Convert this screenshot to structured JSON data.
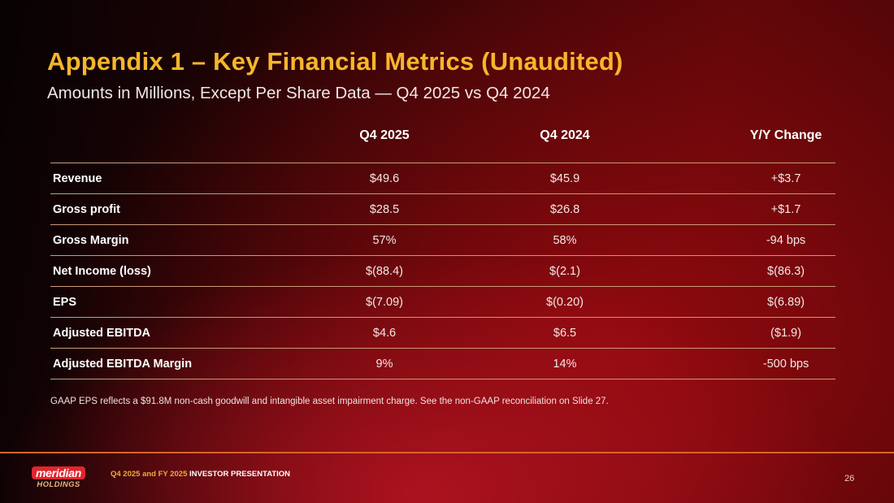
{
  "slide": {
    "title": "Appendix 1 – Key Financial Metrics (Unaudited)",
    "subtitle": "Amounts in Millions, Except Per Share Data — Q4 2025 vs Q4 2024",
    "accent_color": "#f7b52c",
    "page_number": "26"
  },
  "table": {
    "columns": [
      "",
      "Q4 2025",
      "Q4 2024",
      "Y/Y Change"
    ],
    "rows": [
      {
        "label": "Revenue",
        "q4_2025": "$49.6",
        "q4_2024": "$45.9",
        "change": "+$3.7"
      },
      {
        "label": "Gross profit",
        "q4_2025": "$28.5",
        "q4_2024": "$26.8",
        "change": "+$1.7"
      },
      {
        "label": "Gross Margin",
        "q4_2025": "57%",
        "q4_2024": "58%",
        "change": "-94 bps"
      },
      {
        "label": "Net Income (loss)",
        "q4_2025": "$(88.4)",
        "q4_2024": "$(2.1)",
        "change": "$(86.3)"
      },
      {
        "label": "EPS",
        "q4_2025": "$(7.09)",
        "q4_2024": "$(0.20)",
        "change": "$(6.89)"
      },
      {
        "label": "Adjusted EBITDA",
        "q4_2025": "$4.6",
        "q4_2024": "$6.5",
        "change": "($1.9)"
      },
      {
        "label": "Adjusted EBITDA Margin",
        "q4_2025": "9%",
        "q4_2024": "14%",
        "change": "-500 bps"
      }
    ]
  },
  "footnote": "GAAP EPS reflects a $91.8M non-cash goodwill and intangible asset impairment charge. See the non-GAAP reconciliation on Slide 27.",
  "footer": {
    "logo_top": "meridian",
    "logo_bottom": "HOLDINGS",
    "presentation_highlight": "Q4 2025 and FY 2025",
    "presentation_rest": " INVESTOR PRESENTATION"
  }
}
